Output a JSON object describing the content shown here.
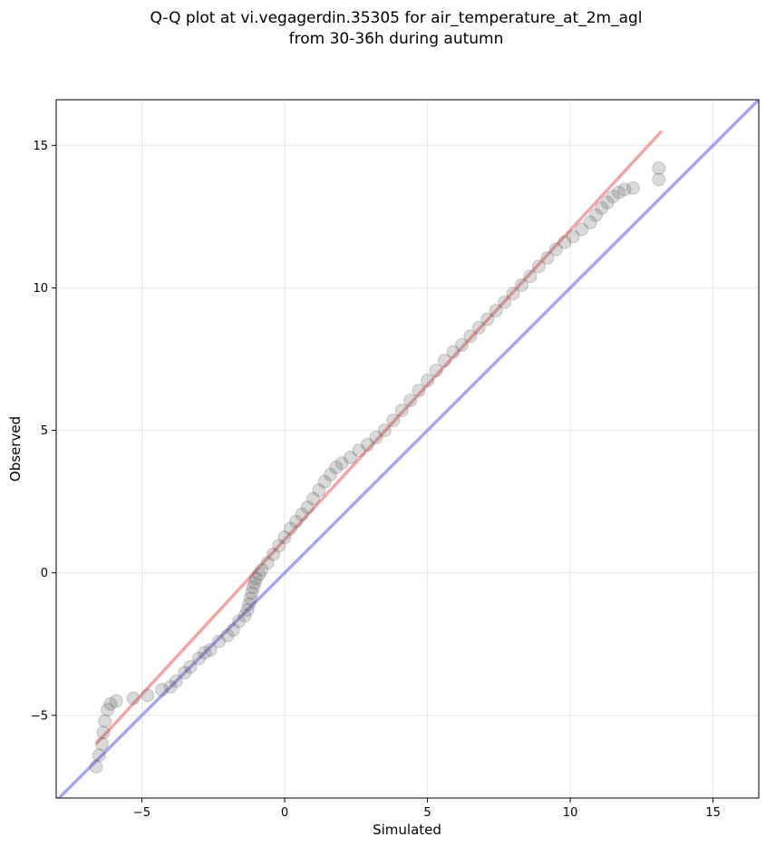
{
  "chart_data": {
    "type": "scatter",
    "title_line1": "Q-Q plot at vi.vegagerdin.35305 for air_temperature_at_2m_agl",
    "title_line2": "from 30-36h during autumn",
    "xlabel": "Simulated",
    "ylabel": "Observed",
    "xlim": [
      -8.0,
      16.6
    ],
    "ylim": [
      -7.9,
      16.6
    ],
    "xticks": [
      -5,
      0,
      5,
      10,
      15
    ],
    "yticks": [
      -5,
      0,
      5,
      10,
      15
    ],
    "xtick_labels": [
      "−5",
      "0",
      "5",
      "10",
      "15"
    ],
    "ytick_labels": [
      "−5",
      "0",
      "5",
      "10",
      "15"
    ],
    "grid": true,
    "point_color": "#555555",
    "fit_line": {
      "color": "#f08080",
      "x": [
        -6.6,
        13.2
      ],
      "y": [
        -6.0,
        15.5
      ]
    },
    "identity_line": {
      "color": "#7777ee",
      "x": [
        -8.0,
        16.6
      ],
      "y": [
        -8.0,
        16.6
      ]
    },
    "series": [
      {
        "x": [
          -6.6,
          -6.5,
          -6.4,
          -6.35,
          -6.3,
          -6.2,
          -6.1,
          -5.9,
          -5.3,
          -4.8,
          -4.3,
          -4.0,
          -3.8,
          -3.5,
          -3.3,
          -3.0,
          -2.8,
          -2.6,
          -2.3,
          -2.0,
          -1.8,
          -1.6,
          -1.4,
          -1.3,
          -1.25,
          -1.2,
          -1.15,
          -1.1,
          -1.05,
          -1.0,
          -0.9,
          -0.8,
          -0.6,
          -0.4,
          -0.2,
          0.0,
          0.2,
          0.4,
          0.6,
          0.8,
          1.0,
          1.2,
          1.4,
          1.6,
          1.8,
          2.0,
          2.3,
          2.6,
          2.9,
          3.2,
          3.5,
          3.8,
          4.1,
          4.4,
          4.7,
          5.0,
          5.3,
          5.6,
          5.9,
          6.2,
          6.5,
          6.8,
          7.1,
          7.4,
          7.7,
          8.0,
          8.3,
          8.6,
          8.9,
          9.2,
          9.5,
          9.8,
          10.1,
          10.4,
          10.7,
          10.9,
          11.1,
          11.3,
          11.5,
          11.7,
          11.9,
          12.2,
          13.1,
          13.1
        ],
        "y": [
          -6.8,
          -6.4,
          -6.0,
          -5.6,
          -5.2,
          -4.8,
          -4.6,
          -4.5,
          -4.4,
          -4.3,
          -4.1,
          -4.0,
          -3.8,
          -3.5,
          -3.3,
          -3.0,
          -2.8,
          -2.7,
          -2.4,
          -2.2,
          -2.0,
          -1.7,
          -1.5,
          -1.3,
          -1.1,
          -0.9,
          -0.7,
          -0.5,
          -0.35,
          -0.2,
          -0.05,
          0.1,
          0.35,
          0.65,
          0.95,
          1.25,
          1.55,
          1.8,
          2.05,
          2.3,
          2.6,
          2.9,
          3.2,
          3.45,
          3.7,
          3.85,
          4.05,
          4.3,
          4.5,
          4.75,
          5.0,
          5.35,
          5.7,
          6.05,
          6.4,
          6.75,
          7.1,
          7.45,
          7.75,
          8.0,
          8.3,
          8.6,
          8.9,
          9.2,
          9.5,
          9.8,
          10.1,
          10.4,
          10.75,
          11.05,
          11.35,
          11.6,
          11.8,
          12.05,
          12.3,
          12.55,
          12.8,
          13.0,
          13.2,
          13.35,
          13.45,
          13.5,
          14.2,
          13.8
        ]
      }
    ]
  }
}
